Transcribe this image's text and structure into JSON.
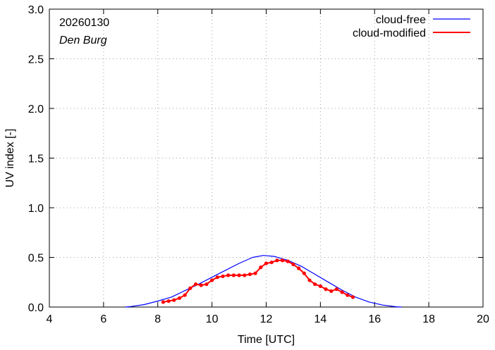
{
  "chart_data": {
    "type": "line",
    "xlabel": "Time  [UTC]",
    "ylabel": "UV index  [-]",
    "xlim": [
      4,
      20
    ],
    "ylim": [
      0,
      3
    ],
    "xticks": [
      4,
      6,
      8,
      10,
      12,
      14,
      16,
      18,
      20
    ],
    "yticks": [
      0,
      0.5,
      1,
      1.5,
      2,
      2.5,
      3
    ],
    "xtick_labels": [
      "4",
      "6",
      "8",
      "10",
      "12",
      "14",
      "16",
      "18",
      "20"
    ],
    "ytick_labels": [
      "0.0",
      "0.5",
      "1.0",
      "1.5",
      "2.0",
      "2.5",
      "3.0"
    ],
    "annotations": [
      "20260130",
      "Den Burg"
    ],
    "legend_position": "top-right",
    "series": [
      {
        "name": "cloud-free",
        "color": "#0000ff",
        "markers": false,
        "x": [
          6.8,
          7.0,
          7.5,
          8.0,
          8.5,
          9.0,
          9.5,
          10.0,
          10.5,
          11.0,
          11.5,
          11.9,
          12.3,
          12.8,
          13.3,
          13.8,
          14.3,
          14.8,
          15.3,
          15.8,
          16.3,
          16.8,
          17.0
        ],
        "y": [
          0.0,
          0.005,
          0.025,
          0.06,
          0.1,
          0.165,
          0.23,
          0.3,
          0.37,
          0.44,
          0.5,
          0.52,
          0.51,
          0.47,
          0.41,
          0.33,
          0.25,
          0.17,
          0.1,
          0.05,
          0.02,
          0.003,
          0.0
        ]
      },
      {
        "name": "cloud-modified",
        "color": "#ff0000",
        "markers": true,
        "x": [
          8.2,
          8.4,
          8.6,
          8.8,
          9.0,
          9.2,
          9.4,
          9.6,
          9.8,
          10.0,
          10.2,
          10.4,
          10.6,
          10.8,
          11.0,
          11.2,
          11.4,
          11.6,
          11.8,
          12.0,
          12.2,
          12.4,
          12.6,
          12.8,
          13.0,
          13.2,
          13.4,
          13.6,
          13.8,
          14.0,
          14.2,
          14.4,
          14.6,
          14.8,
          15.0,
          15.2
        ],
        "y": [
          0.05,
          0.06,
          0.07,
          0.09,
          0.12,
          0.19,
          0.23,
          0.22,
          0.23,
          0.27,
          0.3,
          0.31,
          0.32,
          0.32,
          0.32,
          0.32,
          0.33,
          0.34,
          0.4,
          0.44,
          0.45,
          0.47,
          0.47,
          0.46,
          0.43,
          0.39,
          0.34,
          0.27,
          0.23,
          0.21,
          0.18,
          0.16,
          0.18,
          0.15,
          0.12,
          0.1
        ]
      }
    ]
  }
}
